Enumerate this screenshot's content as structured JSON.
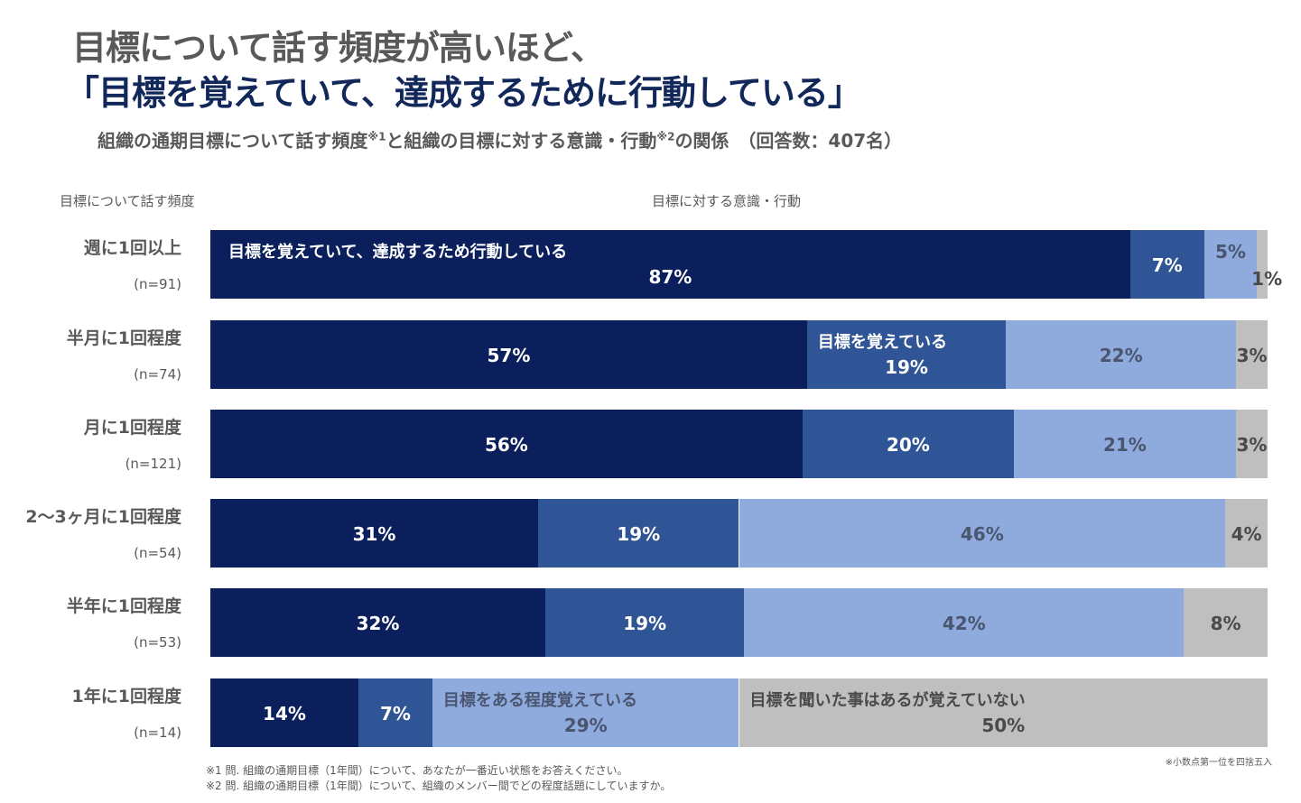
{
  "title_line1": "目標について話す頻度が高いほど、",
  "title_line2": "「目標を覚えていて、達成するために行動している」",
  "subtitle_a": "組織の通期目標について話す頻度",
  "subtitle_sup1": "※1",
  "subtitle_b": "と組織の目標に対する意識・行動",
  "subtitle_sup2": "※2",
  "subtitle_c": "の関係　（回答数：407名）",
  "footnotes": [
    "※1 問. 組織の通期目標（1年間）について、あなたが一番近い状態をお答えください。",
    "※2 問. 組織の通期目標（1年間）について、組織のメンバー間でどの程度話題にしていますか。"
  ],
  "rounding_note": "※小数点第一位を四捨五入",
  "chart_data": {
    "type": "bar",
    "orientation": "horizontal",
    "stacked": true,
    "ylabel": "目標について話す頻度",
    "xlabel": "目標に対する意識・行動",
    "categories": [
      "週に1回以上",
      "半月に1回程度",
      "月に1回程度",
      "2～3ヶ月に1回程度",
      "半年に1回程度",
      "1年に1回程度"
    ],
    "n_labels": [
      "(n=91)",
      "(n=74)",
      "(n=121)",
      "(n=54)",
      "(n=53)",
      "(n=14)"
    ],
    "series": [
      {
        "name": "目標を覚えていて、達成するため行動している",
        "values": [
          87,
          57,
          56,
          31,
          32,
          14
        ],
        "color": "#0b1f5c",
        "label_color": "#ffffff",
        "name_row": 0
      },
      {
        "name": "目標を覚えている",
        "values": [
          7,
          19,
          20,
          19,
          19,
          7
        ],
        "color": "#2f5597",
        "label_color": "#ffffff",
        "name_row": 1
      },
      {
        "name": "目標をある程度覚えている",
        "values": [
          5,
          22,
          21,
          46,
          42,
          29
        ],
        "color": "#8faadc",
        "label_color": "#4a5570",
        "name_row": 5
      },
      {
        "name": "目標を聞いた事はあるが覚えていない",
        "values": [
          1,
          3,
          3,
          4,
          8,
          50
        ],
        "color": "#bfbfbf",
        "label_color": "#4a4a4a",
        "name_row": 5
      }
    ],
    "unit": "%"
  }
}
